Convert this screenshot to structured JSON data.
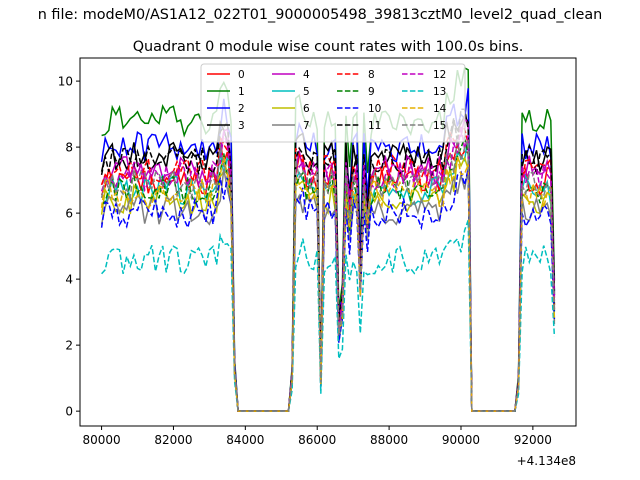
{
  "figure": {
    "suptitle": "n file: modeM0/AS1A12_022T01_9000005498_39813cztM0_level2_quad_clean",
    "title": "Quadrant 0 module wise count rates with 100.0s bins.",
    "x_offset_label": "+4.134e8"
  },
  "chart_data": {
    "type": "line",
    "title": "Quadrant 0 module wise count rates with 100.0s bins.",
    "xlabel": "",
    "ylabel": "",
    "xlim": [
      79400,
      93200
    ],
    "ylim": [
      -0.45,
      10.7
    ],
    "x_ticks": [
      80000,
      82000,
      84000,
      86000,
      88000,
      90000,
      92000
    ],
    "x_tick_labels": [
      "80000",
      "82000",
      "84000",
      "86000",
      "88000",
      "90000",
      "92000"
    ],
    "y_ticks": [
      0,
      2,
      4,
      6,
      8,
      10
    ],
    "y_tick_labels": [
      "0",
      "2",
      "4",
      "6",
      "8",
      "10"
    ],
    "x_offset": 413400000,
    "grid": false,
    "legend": {
      "placement": "upper center",
      "columns": 4
    },
    "x": [
      80000,
      80100,
      80200,
      80300,
      80400,
      80500,
      80600,
      80700,
      80800,
      80900,
      81000,
      81100,
      81200,
      81300,
      81400,
      81500,
      81600,
      81700,
      81800,
      81900,
      82000,
      82100,
      82200,
      82300,
      82400,
      82500,
      82600,
      82700,
      82800,
      82900,
      83000,
      83100,
      83200,
      83300,
      83400,
      83500,
      83600,
      83700,
      83800,
      83900,
      84000,
      84100,
      84200,
      84300,
      84400,
      84500,
      84600,
      84700,
      84800,
      84900,
      85000,
      85100,
      85200,
      85300,
      85400,
      85500,
      85600,
      85700,
      85800,
      85900,
      86000,
      86100,
      86200,
      86300,
      86400,
      86500,
      86600,
      86700,
      86800,
      86900,
      87000,
      87100,
      87200,
      87300,
      87400,
      87500,
      87600,
      87700,
      87800,
      87900,
      88000,
      88100,
      88200,
      88300,
      88400,
      88500,
      88600,
      88700,
      88800,
      88900,
      89000,
      89100,
      89200,
      89300,
      89400,
      89500,
      89600,
      89700,
      89800,
      89900,
      90000,
      90100,
      90200,
      90300,
      90400,
      90500,
      90600,
      90700,
      90800,
      90900,
      91000,
      91100,
      91200,
      91300,
      91400,
      91500,
      91600,
      91700,
      91800,
      91900,
      92000,
      92100,
      92200,
      92300,
      92400,
      92500,
      92600
    ],
    "series": [
      {
        "name": "0",
        "color": "#ff0000",
        "dash": "solid",
        "base": 7.0
      },
      {
        "name": "1",
        "color": "#008000",
        "dash": "solid",
        "base": 8.8
      },
      {
        "name": "2",
        "color": "#0000ff",
        "dash": "solid",
        "base": 8.0
      },
      {
        "name": "3",
        "color": "#000000",
        "dash": "solid",
        "base": 7.7
      },
      {
        "name": "4",
        "color": "#c000c0",
        "dash": "solid",
        "base": 7.3
      },
      {
        "name": "5",
        "color": "#00bfbf",
        "dash": "solid",
        "base": 6.7
      },
      {
        "name": "6",
        "color": "#bfbf00",
        "dash": "solid",
        "base": 6.4
      },
      {
        "name": "7",
        "color": "#808080",
        "dash": "solid",
        "base": 6.1
      },
      {
        "name": "8",
        "color": "#ff0000",
        "dash": "dashed",
        "base": 7.3
      },
      {
        "name": "9",
        "color": "#008000",
        "dash": "dashed",
        "base": 6.7
      },
      {
        "name": "10",
        "color": "#0000ff",
        "dash": "dashed",
        "base": 6.0
      },
      {
        "name": "11",
        "color": "#000000",
        "dash": "dashed",
        "base": 7.6
      },
      {
        "name": "12",
        "color": "#c000c0",
        "dash": "dashed",
        "base": 7.1
      },
      {
        "name": "13",
        "color": "#00bfbf",
        "dash": "dashed",
        "base": 4.6
      },
      {
        "name": "14",
        "color": "#e6b000",
        "dash": "dashed",
        "base": 6.6
      },
      {
        "name": "15",
        "color": "#808080",
        "dash": "dashed",
        "base": 6.9
      }
    ]
  }
}
